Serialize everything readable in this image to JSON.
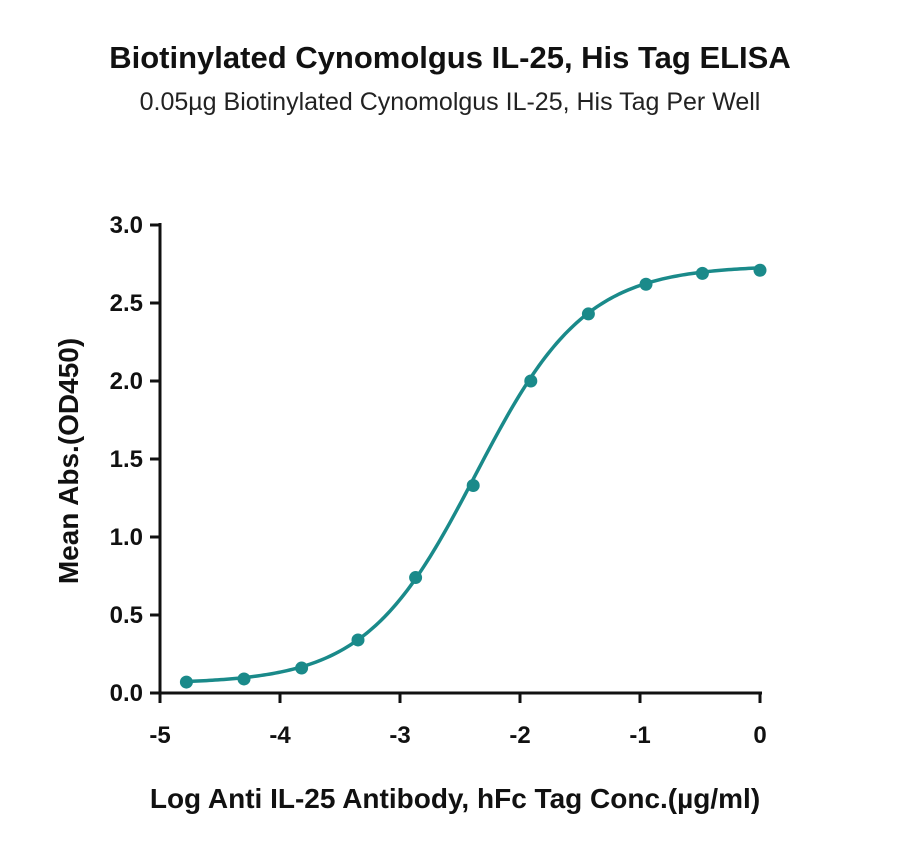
{
  "chart_data": {
    "type": "scatter",
    "title": "Biotinylated Cynomolgus IL-25, His Tag ELISA",
    "subtitle": "0.05µg Biotinylated Cynomolgus IL-25, His Tag Per Well",
    "xlabel": "Log Anti IL-25 Antibody, hFc Tag Conc.(µg/ml)",
    "ylabel": "Mean Abs.(OD450)",
    "xlim": [
      -5,
      0
    ],
    "ylim": [
      0,
      3.0
    ],
    "x_ticks": [
      "-5",
      "-4",
      "-3",
      "-2",
      "-1",
      "0"
    ],
    "y_ticks": [
      "0.0",
      "0.5",
      "1.0",
      "1.5",
      "2.0",
      "2.5",
      "3.0"
    ],
    "grid": false,
    "color": "#1a8a8a",
    "series": [
      {
        "x": [
          -4.78,
          -4.3,
          -3.82,
          -3.35,
          -2.87,
          -2.39,
          -1.91,
          -1.43,
          -0.95,
          -0.48,
          0.0
        ],
        "y": [
          0.07,
          0.09,
          0.16,
          0.34,
          0.74,
          1.33,
          2.0,
          2.43,
          2.62,
          2.69,
          2.71
        ]
      }
    ],
    "fit_curve": {
      "model": "4PL",
      "bottom": 0.06,
      "top": 2.74,
      "logEC50": -2.37,
      "hill": 0.95
    }
  }
}
